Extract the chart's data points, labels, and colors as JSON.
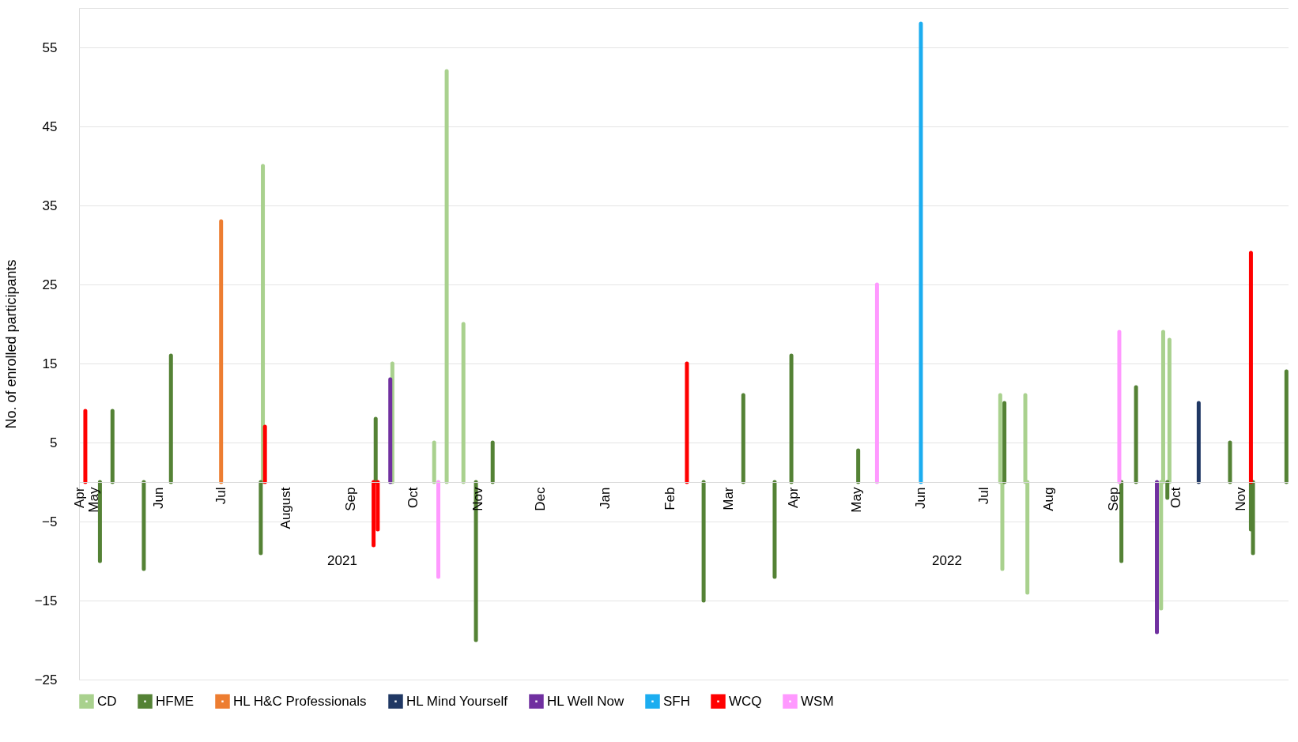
{
  "chart_data": {
    "type": "bar",
    "ylabel": "No. of enrolled participants",
    "xlim": [
      "2021-04-24",
      "2022-11-24"
    ],
    "xticks": [
      {
        "value": "2021-04-24",
        "label": "Apr"
      },
      {
        "value": "2021-05-01",
        "label": "May"
      },
      {
        "value": "2021-06-01",
        "label": "Jun"
      },
      {
        "value": "2021-07-01",
        "label": "Jul"
      },
      {
        "value": "2021-08-01",
        "label": "August"
      },
      {
        "value": "2021-09-01",
        "label": "Sep"
      },
      {
        "value": "2021-10-01",
        "label": "Oct"
      },
      {
        "value": "2021-11-01",
        "label": "Nov"
      },
      {
        "value": "2021-12-01",
        "label": "Dec"
      },
      {
        "value": "2022-01-01",
        "label": "Jan"
      },
      {
        "value": "2022-02-01",
        "label": "Feb"
      },
      {
        "value": "2022-03-01",
        "label": "Mar"
      },
      {
        "value": "2022-04-01",
        "label": "Apr"
      },
      {
        "value": "2022-05-01",
        "label": "May"
      },
      {
        "value": "2022-06-01",
        "label": "Jun"
      },
      {
        "value": "2022-07-01",
        "label": "Jul"
      },
      {
        "value": "2022-08-01",
        "label": "Aug"
      },
      {
        "value": "2022-09-01",
        "label": "Sep"
      },
      {
        "value": "2022-10-01",
        "label": "Oct"
      },
      {
        "value": "2022-11-01",
        "label": "Nov"
      }
    ],
    "ylim": [
      -25,
      60
    ],
    "yticks": [
      -25,
      -15,
      -5,
      5,
      15,
      25,
      35,
      45,
      55
    ],
    "grid": "y",
    "legend": "bottom",
    "annotations": [
      "2021",
      "2022"
    ],
    "series": [
      {
        "name": "CD",
        "color": "#a9d18e",
        "x": [
          "2021-07-21",
          "2021-09-21",
          "2021-10-11",
          "2021-10-17",
          "2021-10-25",
          "2022-07-09",
          "2022-07-10",
          "2022-07-21",
          "2022-07-22",
          "2022-09-24",
          "2022-09-25",
          "2022-09-28"
        ],
        "values": [
          40,
          15,
          5,
          52,
          20,
          11,
          -11,
          11,
          -14,
          -16,
          19,
          18
        ]
      },
      {
        "name": "HFME",
        "color": "#548235",
        "x": [
          "2021-05-04",
          "2021-05-10",
          "2021-05-25",
          "2021-06-07",
          "2021-07-20",
          "2021-09-13",
          "2021-10-31",
          "2021-11-08",
          "2022-02-17",
          "2022-03-08",
          "2022-03-23",
          "2022-03-31",
          "2022-05-02",
          "2022-07-11",
          "2022-09-05",
          "2022-09-12",
          "2022-09-27",
          "2022-10-27",
          "2022-11-06",
          "2022-11-07",
          "2022-11-23"
        ],
        "values": [
          -10,
          9,
          -11,
          16,
          -9,
          8,
          -20,
          5,
          -15,
          11,
          -12,
          16,
          4,
          10,
          -10,
          12,
          -2,
          5,
          -6,
          -9,
          14
        ]
      },
      {
        "name": "HL H&C Professionals",
        "color": "#ed7d31",
        "x": [
          "2021-07-01"
        ],
        "values": [
          33
        ]
      },
      {
        "name": "HL Mind Yourself",
        "color": "#203864",
        "x": [
          "2022-10-12"
        ],
        "values": [
          10
        ]
      },
      {
        "name": "HL Well Now",
        "color": "#7030a0",
        "x": [
          "2021-09-20",
          "2022-09-22"
        ],
        "values": [
          13,
          -19
        ]
      },
      {
        "name": "SFH",
        "color": "#1cadf0",
        "x": [
          "2022-06-01"
        ],
        "values": [
          58
        ]
      },
      {
        "name": "WCQ",
        "color": "#ff0000",
        "x": [
          "2021-04-27",
          "2021-07-22",
          "2021-09-12",
          "2021-09-14",
          "2022-02-09",
          "2022-11-06"
        ],
        "values": [
          9,
          7,
          -8,
          -6,
          15,
          29
        ]
      },
      {
        "name": "WSM",
        "color": "#ff99ff",
        "x": [
          "2021-10-13",
          "2022-05-11",
          "2022-09-04"
        ],
        "values": [
          -12,
          25,
          19
        ]
      }
    ]
  }
}
